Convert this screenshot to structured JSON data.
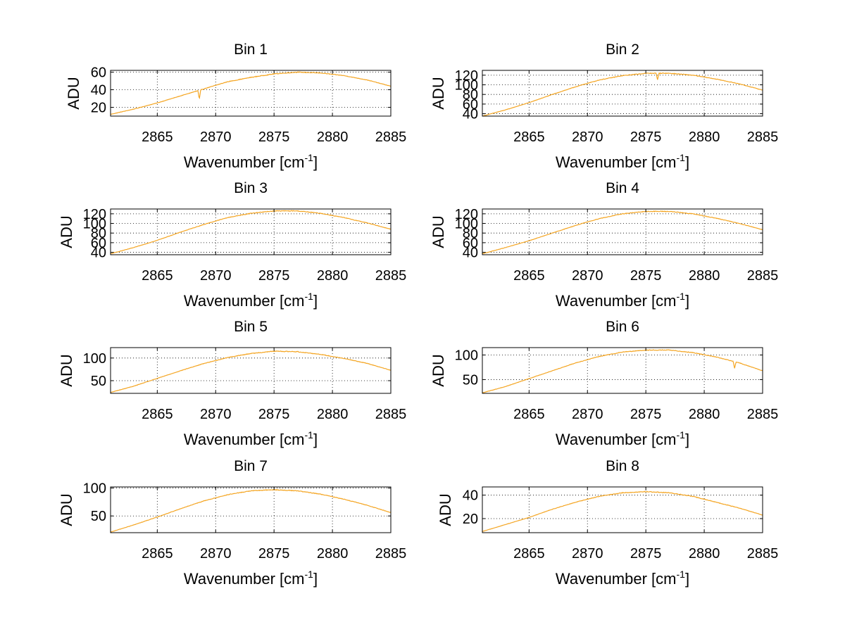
{
  "figure": {
    "line_color": "#f5a623",
    "background": "#ffffff"
  },
  "chart_data": [
    {
      "type": "line",
      "title": "Bin 1",
      "xlabel": "Wavenumber [cm",
      "xlabel_sup": "-1",
      "xlabel_end": "]",
      "ylabel": "ADU",
      "xlim": [
        2861,
        2885
      ],
      "ylim": [
        10,
        62
      ],
      "xticks": [
        2865,
        2870,
        2875,
        2880,
        2885
      ],
      "yticks": [
        20,
        40,
        60
      ],
      "series": [
        {
          "name": "spectrum",
          "x": [
            2861,
            2863,
            2865,
            2867,
            2869,
            2871,
            2873,
            2875,
            2877,
            2879,
            2881,
            2883,
            2885
          ],
          "y": [
            12,
            18,
            25,
            33,
            41,
            49,
            54,
            58,
            60,
            59,
            56,
            51,
            44
          ]
        }
      ],
      "dips": [
        {
          "x": 2868.6,
          "y": 29
        }
      ]
    },
    {
      "type": "line",
      "title": "Bin 2",
      "xlabel": "Wavenumber [cm",
      "xlabel_sup": "-1",
      "xlabel_end": "]",
      "ylabel": "ADU",
      "xlim": [
        2861,
        2885
      ],
      "ylim": [
        35,
        130
      ],
      "xticks": [
        2865,
        2870,
        2875,
        2880,
        2885
      ],
      "yticks": [
        40,
        60,
        80,
        100,
        120
      ],
      "series": [
        {
          "name": "spectrum",
          "x": [
            2861,
            2863,
            2865,
            2867,
            2869,
            2871,
            2873,
            2875,
            2877,
            2879,
            2881,
            2883,
            2885
          ],
          "y": [
            35,
            48,
            63,
            80,
            96,
            110,
            119,
            124,
            124,
            120,
            112,
            102,
            89
          ]
        }
      ],
      "dips": [
        {
          "x": 2876,
          "y": 110
        }
      ]
    },
    {
      "type": "line",
      "title": "Bin 3",
      "xlabel": "Wavenumber [cm",
      "xlabel_sup": "-1",
      "xlabel_end": "]",
      "ylabel": "ADU",
      "xlim": [
        2861,
        2885
      ],
      "ylim": [
        35,
        130
      ],
      "xticks": [
        2865,
        2870,
        2875,
        2880,
        2885
      ],
      "yticks": [
        40,
        60,
        80,
        100,
        120
      ],
      "series": [
        {
          "name": "spectrum",
          "x": [
            2861,
            2863,
            2865,
            2867,
            2869,
            2871,
            2873,
            2875,
            2877,
            2879,
            2881,
            2883,
            2885
          ],
          "y": [
            37,
            50,
            65,
            82,
            98,
            112,
            121,
            126,
            126,
            121,
            112,
            101,
            88
          ]
        }
      ],
      "dips": []
    },
    {
      "type": "line",
      "title": "Bin 4",
      "xlabel": "Wavenumber [cm",
      "xlabel_sup": "-1",
      "xlabel_end": "]",
      "ylabel": "ADU",
      "xlim": [
        2861,
        2885
      ],
      "ylim": [
        35,
        130
      ],
      "xticks": [
        2865,
        2870,
        2875,
        2880,
        2885
      ],
      "yticks": [
        40,
        60,
        80,
        100,
        120
      ],
      "series": [
        {
          "name": "spectrum",
          "x": [
            2861,
            2863,
            2865,
            2867,
            2869,
            2871,
            2873,
            2875,
            2877,
            2879,
            2881,
            2883,
            2885
          ],
          "y": [
            37,
            50,
            64,
            80,
            96,
            110,
            120,
            125,
            125,
            120,
            111,
            100,
            87
          ]
        }
      ],
      "dips": []
    },
    {
      "type": "line",
      "title": "Bin 5",
      "xlabel": "Wavenumber [cm",
      "xlabel_sup": "-1",
      "xlabel_end": "]",
      "ylabel": "ADU",
      "xlim": [
        2861,
        2885
      ],
      "ylim": [
        22,
        123
      ],
      "xticks": [
        2865,
        2870,
        2875,
        2880,
        2885
      ],
      "yticks": [
        50,
        100
      ],
      "series": [
        {
          "name": "spectrum",
          "x": [
            2861,
            2863,
            2865,
            2867,
            2869,
            2871,
            2873,
            2875,
            2877,
            2879,
            2881,
            2883,
            2885
          ],
          "y": [
            24,
            38,
            55,
            72,
            88,
            101,
            110,
            115,
            114,
            108,
            99,
            88,
            73
          ]
        }
      ],
      "dips": []
    },
    {
      "type": "line",
      "title": "Bin 6",
      "xlabel": "Wavenumber [cm",
      "xlabel_sup": "-1",
      "xlabel_end": "]",
      "ylabel": "ADU",
      "xlim": [
        2861,
        2885
      ],
      "ylim": [
        22,
        115
      ],
      "xticks": [
        2865,
        2870,
        2875,
        2880,
        2885
      ],
      "yticks": [
        50,
        100
      ],
      "series": [
        {
          "name": "spectrum",
          "x": [
            2861,
            2863,
            2865,
            2867,
            2869,
            2871,
            2873,
            2875,
            2877,
            2879,
            2881,
            2883,
            2885
          ],
          "y": [
            23,
            36,
            52,
            68,
            84,
            97,
            106,
            110,
            110,
            105,
            96,
            84,
            68
          ]
        }
      ],
      "dips": [
        {
          "x": 2882.6,
          "y": 73
        }
      ]
    },
    {
      "type": "line",
      "title": "Bin 7",
      "xlabel": "Wavenumber [cm",
      "xlabel_sup": "-1",
      "xlabel_end": "]",
      "ylabel": "ADU",
      "xlim": [
        2861,
        2885
      ],
      "ylim": [
        20,
        102
      ],
      "xticks": [
        2865,
        2870,
        2875,
        2880,
        2885
      ],
      "yticks": [
        50,
        100
      ],
      "series": [
        {
          "name": "spectrum",
          "x": [
            2861,
            2863,
            2865,
            2867,
            2869,
            2871,
            2873,
            2875,
            2877,
            2879,
            2881,
            2883,
            2885
          ],
          "y": [
            21,
            34,
            48,
            63,
            77,
            88,
            95,
            97,
            95,
            89,
            80,
            69,
            56
          ]
        }
      ],
      "dips": []
    },
    {
      "type": "line",
      "title": "Bin 8",
      "xlabel": "Wavenumber [cm",
      "xlabel_sup": "-1",
      "xlabel_end": "]",
      "ylabel": "ADU",
      "xlim": [
        2861,
        2885
      ],
      "ylim": [
        8,
        47
      ],
      "xticks": [
        2865,
        2870,
        2875,
        2880,
        2885
      ],
      "yticks": [
        20,
        40
      ],
      "series": [
        {
          "name": "spectrum",
          "x": [
            2861,
            2863,
            2865,
            2867,
            2869,
            2871,
            2873,
            2875,
            2877,
            2879,
            2881,
            2883,
            2885
          ],
          "y": [
            9,
            15,
            21,
            28,
            34,
            39,
            42,
            43,
            42,
            39,
            34,
            29,
            23
          ]
        }
      ],
      "dips": []
    }
  ]
}
